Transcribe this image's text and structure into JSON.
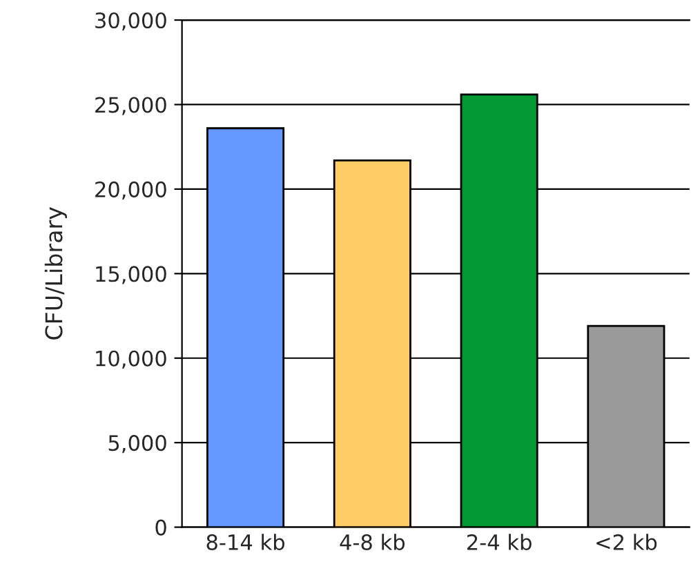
{
  "chart_data": {
    "type": "bar",
    "ylabel": "CFU/Library",
    "categories": [
      "8-14 kb",
      "4-8 kb",
      "2-4 kb",
      "<2 kb"
    ],
    "values": [
      23600,
      21700,
      25600,
      11900
    ],
    "colors": [
      "#6699ff",
      "#ffcc66",
      "#009933",
      "#999999"
    ],
    "ylim": [
      0,
      30000
    ],
    "yticks": [
      {
        "value": 0,
        "label": "0"
      },
      {
        "value": 5000,
        "label": "5,000"
      },
      {
        "value": 10000,
        "label": "10,000"
      },
      {
        "value": 15000,
        "label": "15,000"
      },
      {
        "value": 20000,
        "label": "20,000"
      },
      {
        "value": 25000,
        "label": "25,000"
      },
      {
        "value": 30000,
        "label": "30,000"
      }
    ],
    "grid": "y"
  }
}
